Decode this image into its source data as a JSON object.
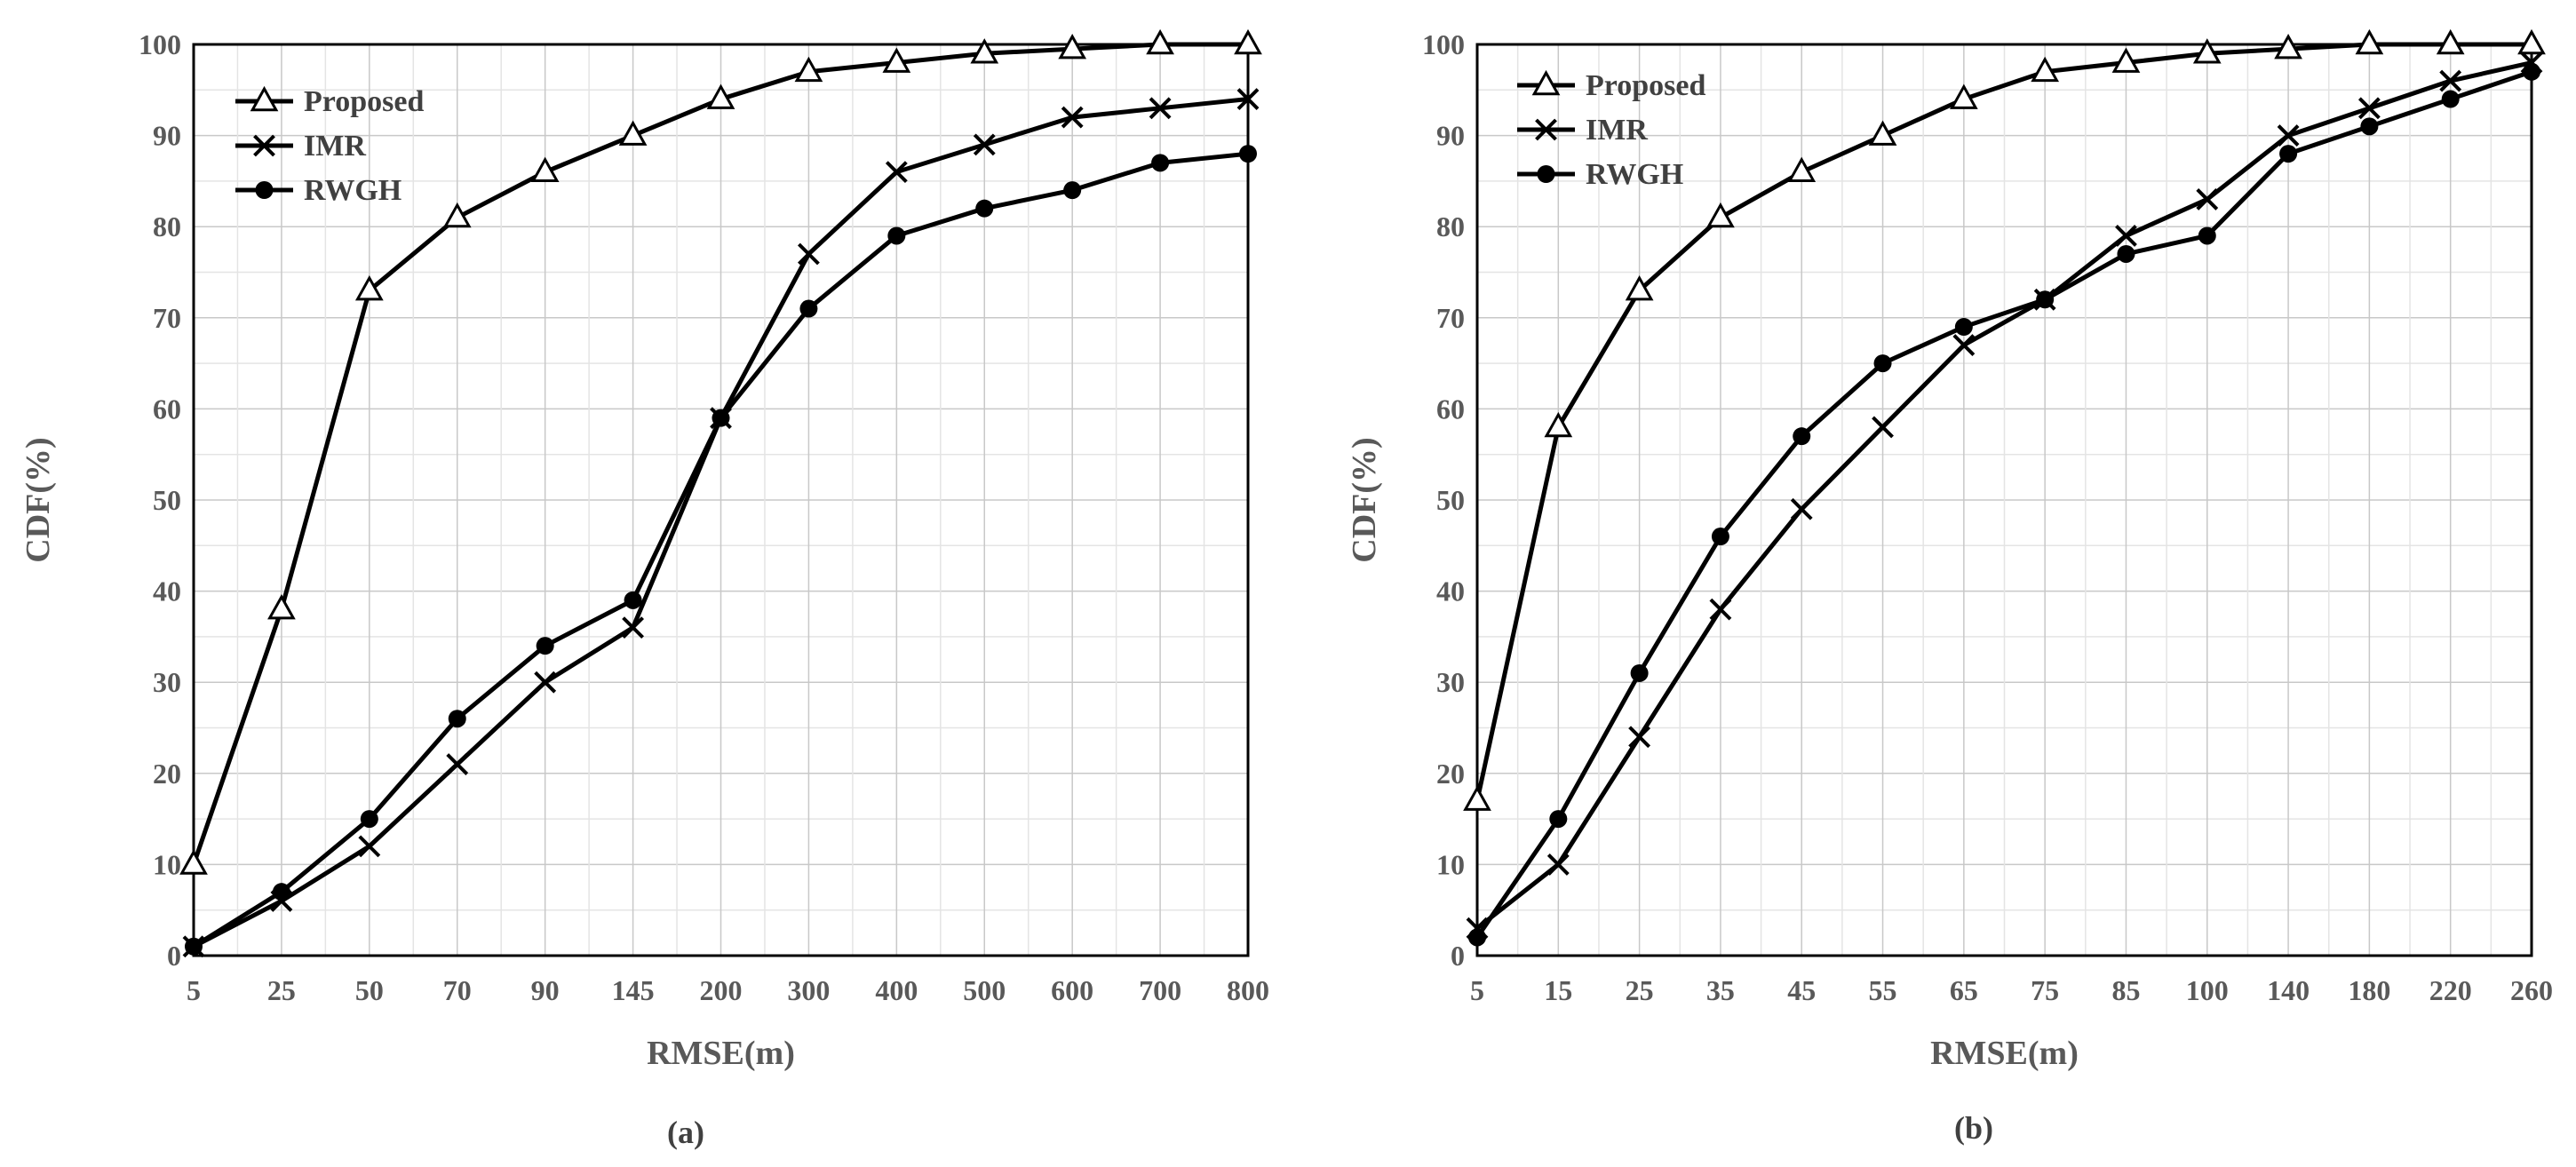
{
  "chart_data": [
    {
      "type": "line",
      "caption": "(a)",
      "xlabel": "RMSE(m)",
      "ylabel": "CDF(%)",
      "categories": [
        "5",
        "25",
        "50",
        "70",
        "90",
        "145",
        "200",
        "300",
        "400",
        "500",
        "600",
        "700",
        "800"
      ],
      "yticks": [
        "0",
        "10",
        "20",
        "30",
        "40",
        "50",
        "60",
        "70",
        "80",
        "90",
        "100"
      ],
      "ylim": [
        0,
        100
      ],
      "grid": true,
      "legend_position": "top-left",
      "series": [
        {
          "name": "Proposed",
          "marker": "triangle",
          "values": [
            10,
            38,
            73,
            81,
            86,
            90,
            94,
            97,
            98,
            99,
            99.5,
            100,
            100
          ]
        },
        {
          "name": "IMR",
          "marker": "cross",
          "values": [
            1,
            6,
            12,
            21,
            30,
            36,
            59,
            77,
            86,
            89,
            92,
            93,
            94
          ]
        },
        {
          "name": "RWGH",
          "marker": "circle",
          "values": [
            1,
            7,
            15,
            26,
            34,
            39,
            59,
            71,
            79,
            82,
            84,
            87,
            88
          ]
        }
      ]
    },
    {
      "type": "line",
      "caption": "(b)",
      "xlabel": "RMSE(m)",
      "ylabel": "CDF(%)",
      "categories": [
        "5",
        "15",
        "25",
        "35",
        "45",
        "55",
        "65",
        "75",
        "85",
        "100",
        "140",
        "180",
        "220",
        "260"
      ],
      "yticks": [
        "0",
        "10",
        "20",
        "30",
        "40",
        "50",
        "60",
        "70",
        "80",
        "90",
        "100"
      ],
      "ylim": [
        0,
        100
      ],
      "grid": true,
      "legend_position": "top-left",
      "series": [
        {
          "name": "Proposed",
          "marker": "triangle",
          "values": [
            17,
            58,
            73,
            81,
            86,
            90,
            94,
            97,
            98,
            99,
            99.5,
            100,
            100,
            100
          ]
        },
        {
          "name": "IMR",
          "marker": "cross",
          "values": [
            3,
            10,
            24,
            38,
            49,
            58,
            67,
            72,
            79,
            83,
            90,
            93,
            96,
            98
          ]
        },
        {
          "name": "RWGH",
          "marker": "circle",
          "values": [
            2,
            15,
            31,
            46,
            57,
            65,
            69,
            72,
            77,
            79,
            88,
            91,
            94,
            97
          ]
        }
      ]
    }
  ]
}
